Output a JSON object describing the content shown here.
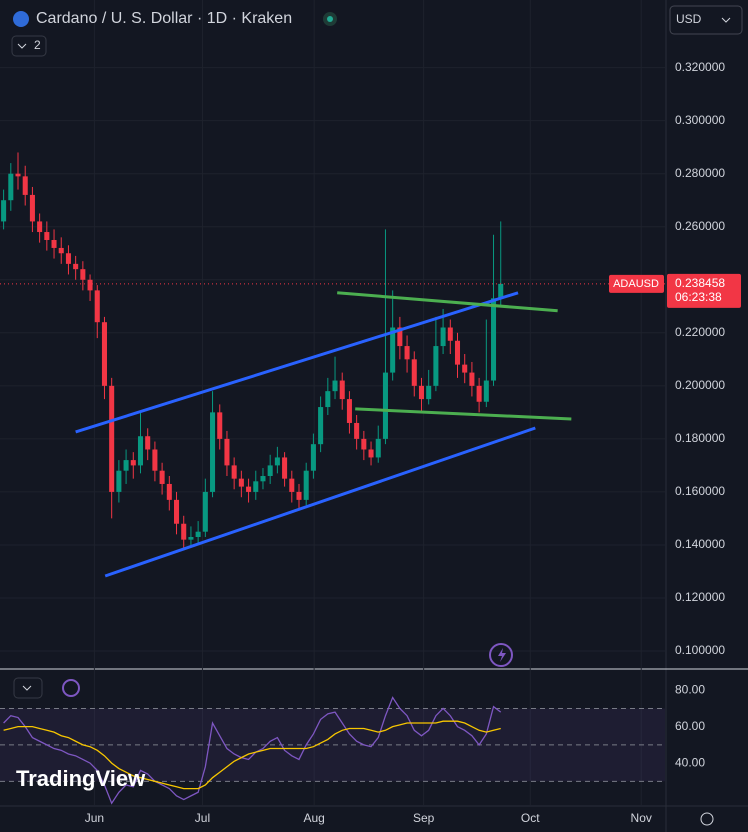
{
  "header": {
    "title": "Cardano / U. S. Dollar · 1D · Kraken",
    "indicator_count": "2",
    "currency": "USD",
    "logo": "TradingView"
  },
  "chart_data": [
    {
      "type": "candlestick",
      "up_color": "#089981",
      "down_color": "#f23645",
      "candles": [
        [
          0.262,
          0.274,
          0.259,
          0.27
        ],
        [
          0.27,
          0.284,
          0.266,
          0.28
        ],
        [
          0.28,
          0.288,
          0.274,
          0.279
        ],
        [
          0.279,
          0.283,
          0.268,
          0.272
        ],
        [
          0.272,
          0.275,
          0.258,
          0.262
        ],
        [
          0.262,
          0.265,
          0.254,
          0.258
        ],
        [
          0.258,
          0.262,
          0.251,
          0.255
        ],
        [
          0.255,
          0.259,
          0.248,
          0.252
        ],
        [
          0.252,
          0.256,
          0.246,
          0.25
        ],
        [
          0.25,
          0.253,
          0.242,
          0.246
        ],
        [
          0.246,
          0.249,
          0.24,
          0.244
        ],
        [
          0.244,
          0.247,
          0.236,
          0.24
        ],
        [
          0.24,
          0.242,
          0.232,
          0.236
        ],
        [
          0.236,
          0.238,
          0.218,
          0.224
        ],
        [
          0.224,
          0.226,
          0.195,
          0.2
        ],
        [
          0.2,
          0.203,
          0.15,
          0.16
        ],
        [
          0.16,
          0.172,
          0.156,
          0.168
        ],
        [
          0.168,
          0.176,
          0.163,
          0.172
        ],
        [
          0.172,
          0.175,
          0.165,
          0.17
        ],
        [
          0.17,
          0.19,
          0.167,
          0.181
        ],
        [
          0.181,
          0.184,
          0.172,
          0.176
        ],
        [
          0.176,
          0.179,
          0.164,
          0.168
        ],
        [
          0.168,
          0.171,
          0.159,
          0.163
        ],
        [
          0.163,
          0.166,
          0.153,
          0.157
        ],
        [
          0.157,
          0.16,
          0.144,
          0.148
        ],
        [
          0.148,
          0.151,
          0.138,
          0.142
        ],
        [
          0.142,
          0.147,
          0.139,
          0.143
        ],
        [
          0.143,
          0.149,
          0.14,
          0.145
        ],
        [
          0.145,
          0.165,
          0.143,
          0.16
        ],
        [
          0.16,
          0.198,
          0.158,
          0.19
        ],
        [
          0.19,
          0.193,
          0.176,
          0.18
        ],
        [
          0.18,
          0.183,
          0.166,
          0.17
        ],
        [
          0.17,
          0.173,
          0.161,
          0.165
        ],
        [
          0.165,
          0.168,
          0.158,
          0.162
        ],
        [
          0.162,
          0.165,
          0.156,
          0.16
        ],
        [
          0.16,
          0.168,
          0.157,
          0.164
        ],
        [
          0.164,
          0.169,
          0.161,
          0.166
        ],
        [
          0.166,
          0.174,
          0.163,
          0.17
        ],
        [
          0.17,
          0.177,
          0.167,
          0.173
        ],
        [
          0.173,
          0.175,
          0.162,
          0.165
        ],
        [
          0.165,
          0.168,
          0.156,
          0.16
        ],
        [
          0.16,
          0.163,
          0.153,
          0.157
        ],
        [
          0.157,
          0.171,
          0.155,
          0.168
        ],
        [
          0.168,
          0.182,
          0.165,
          0.178
        ],
        [
          0.178,
          0.196,
          0.175,
          0.192
        ],
        [
          0.192,
          0.203,
          0.189,
          0.198
        ],
        [
          0.198,
          0.211,
          0.195,
          0.202
        ],
        [
          0.202,
          0.205,
          0.191,
          0.195
        ],
        [
          0.195,
          0.198,
          0.182,
          0.186
        ],
        [
          0.186,
          0.189,
          0.176,
          0.18
        ],
        [
          0.18,
          0.183,
          0.172,
          0.176
        ],
        [
          0.176,
          0.179,
          0.17,
          0.173
        ],
        [
          0.173,
          0.185,
          0.171,
          0.18
        ],
        [
          0.18,
          0.259,
          0.178,
          0.205
        ],
        [
          0.205,
          0.236,
          0.202,
          0.222
        ],
        [
          0.222,
          0.226,
          0.21,
          0.215
        ],
        [
          0.215,
          0.219,
          0.205,
          0.21
        ],
        [
          0.21,
          0.213,
          0.196,
          0.2
        ],
        [
          0.2,
          0.203,
          0.19,
          0.195
        ],
        [
          0.195,
          0.206,
          0.193,
          0.2
        ],
        [
          0.2,
          0.226,
          0.198,
          0.215
        ],
        [
          0.215,
          0.229,
          0.212,
          0.222
        ],
        [
          0.222,
          0.225,
          0.212,
          0.217
        ],
        [
          0.217,
          0.22,
          0.203,
          0.208
        ],
        [
          0.208,
          0.212,
          0.201,
          0.205
        ],
        [
          0.205,
          0.209,
          0.196,
          0.2
        ],
        [
          0.2,
          0.203,
          0.19,
          0.194
        ],
        [
          0.194,
          0.225,
          0.192,
          0.202
        ],
        [
          0.202,
          0.257,
          0.2,
          0.233
        ],
        [
          0.233,
          0.262,
          0.23,
          0.238458
        ]
      ],
      "xlim": [
        -0.5,
        91.8
      ],
      "xticks": [
        {
          "value": 12.6,
          "label": "Jun"
        },
        {
          "value": 27.6,
          "label": "Jul"
        },
        {
          "value": 43.1,
          "label": "Aug"
        },
        {
          "value": 58.3,
          "label": "Sep"
        },
        {
          "value": 73.1,
          "label": "Oct"
        },
        {
          "value": 88.5,
          "label": "Nov"
        }
      ],
      "ylim": [
        0.0936,
        0.3455
      ],
      "yticks": [
        {
          "value": 0.1,
          "label": "0.100000"
        },
        {
          "value": 0.12,
          "label": "0.120000"
        },
        {
          "value": 0.14,
          "label": "0.140000"
        },
        {
          "value": 0.16,
          "label": "0.160000"
        },
        {
          "value": 0.18,
          "label": "0.180000"
        },
        {
          "value": 0.2,
          "label": "0.200000"
        },
        {
          "value": 0.22,
          "label": "0.220000"
        },
        {
          "value": 0.24,
          "label": "0.240000"
        },
        {
          "value": 0.26,
          "label": "0.260000"
        },
        {
          "value": 0.28,
          "label": "0.280000"
        },
        {
          "value": 0.3,
          "label": "0.300000"
        },
        {
          "value": 0.32,
          "label": "0.320000"
        }
      ],
      "grid": true,
      "last_price": {
        "value": 0.238458,
        "label": "ADAUSD",
        "countdown": "06:23:38"
      },
      "trendlines": [
        {
          "color": "#2962ff",
          "x": [
            10,
            71.4
          ],
          "y": [
            0.1826,
            0.2351
          ]
        },
        {
          "color": "#2962ff",
          "x": [
            14.1,
            73.8
          ],
          "y": [
            0.1283,
            0.1841
          ]
        },
        {
          "color": "#4caf50",
          "x": [
            46.3,
            76.9
          ],
          "y": [
            0.2351,
            0.2283
          ]
        },
        {
          "color": "#4caf50",
          "x": [
            48.8,
            78.8
          ],
          "y": [
            0.1913,
            0.1875
          ]
        }
      ]
    },
    {
      "type": "line",
      "series": [
        {
          "color": "#7e57c2",
          "values": [
            62,
            66,
            65,
            60,
            54,
            52,
            50,
            48,
            47,
            45,
            44,
            42,
            40,
            36,
            28,
            18,
            24,
            28,
            27,
            36,
            34,
            30,
            28,
            26,
            22,
            20,
            22,
            24,
            38,
            62,
            55,
            48,
            45,
            43,
            42,
            46,
            48,
            52,
            54,
            47,
            44,
            42,
            50,
            56,
            64,
            67,
            68,
            62,
            56,
            52,
            50,
            49,
            54,
            66,
            76,
            70,
            66,
            58,
            55,
            58,
            66,
            70,
            66,
            60,
            58,
            55,
            50,
            56,
            71,
            68
          ]
        },
        {
          "color": "#f7c600",
          "values": [
            58,
            59,
            60,
            60,
            60,
            59,
            58,
            57,
            55,
            54,
            52,
            50,
            49,
            47,
            44,
            40,
            37,
            35,
            33,
            32,
            31,
            30,
            29,
            28,
            27,
            26,
            26,
            26,
            28,
            32,
            35,
            38,
            41,
            43,
            45,
            46,
            47,
            48,
            48,
            48,
            48,
            48,
            48,
            49,
            51,
            53,
            56,
            58,
            59,
            59,
            59,
            58,
            57,
            58,
            60,
            61,
            62,
            62,
            62,
            62,
            62,
            63,
            63,
            63,
            62,
            60,
            58,
            57,
            58,
            59
          ]
        }
      ],
      "levels": [
        70,
        50,
        30
      ],
      "ylim": [
        17,
        90
      ],
      "yticks": [
        {
          "value": 80,
          "label": "80.00"
        },
        {
          "value": 60,
          "label": "60.00"
        },
        {
          "value": 40,
          "label": "40.00"
        }
      ]
    }
  ]
}
